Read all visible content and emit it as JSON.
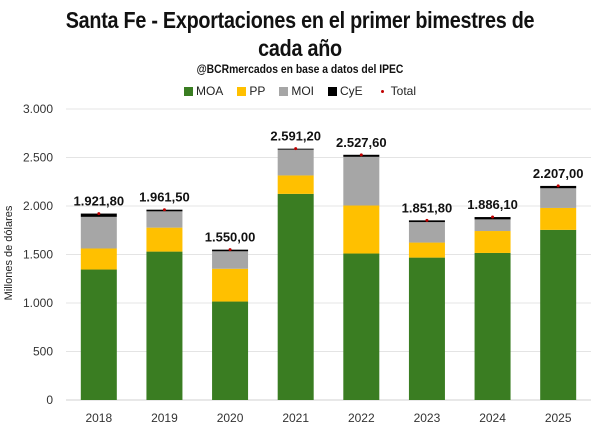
{
  "chart_data": {
    "type": "bar",
    "stacked": true,
    "title": "Santa Fe - Exportaciones en el primer bimestres de cada año",
    "title_line1": "Santa Fe - Exportaciones en el primer bimestres de",
    "title_line2": "cada año",
    "subtitle": "@BCRmercados en base a datos del IPEC",
    "xlabel": "",
    "ylabel": "Millones de dólares",
    "ylim": [
      0,
      3000
    ],
    "yticks": [
      0,
      500,
      1000,
      1500,
      2000,
      2500,
      3000
    ],
    "ytick_labels": [
      "0",
      "500",
      "1.000",
      "1.500",
      "2.000",
      "2.500",
      "3.000"
    ],
    "grid": true,
    "legend_position": "top",
    "categories": [
      "2018",
      "2019",
      "2020",
      "2021",
      "2022",
      "2023",
      "2024",
      "2025"
    ],
    "series": [
      {
        "name": "MOA",
        "color": "#3A7D22",
        "values": [
          1345,
          1530,
          1015,
          2125,
          1510,
          1468,
          1516,
          1754
        ]
      },
      {
        "name": "PP",
        "color": "#FFC000",
        "values": [
          217,
          247,
          338,
          190,
          495,
          155,
          226,
          226
        ]
      },
      {
        "name": "MOI",
        "color": "#A6A6A6",
        "values": [
          326,
          168,
          180,
          266,
          502,
          211,
          120,
          203
        ]
      },
      {
        "name": "CyE",
        "color": "#000000",
        "values": [
          34,
          17,
          17,
          10,
          21,
          18,
          24,
          24
        ]
      }
    ],
    "total": {
      "name": "Total",
      "color": "#C00000",
      "values": [
        1921.8,
        1961.5,
        1550.0,
        2591.2,
        2527.6,
        1851.8,
        1886.1,
        2207.0
      ],
      "labels": [
        "1.921,80",
        "1.961,50",
        "1.550,00",
        "2.591,20",
        "2.527,60",
        "1.851,80",
        "1.886,10",
        "2.207,00"
      ]
    }
  }
}
